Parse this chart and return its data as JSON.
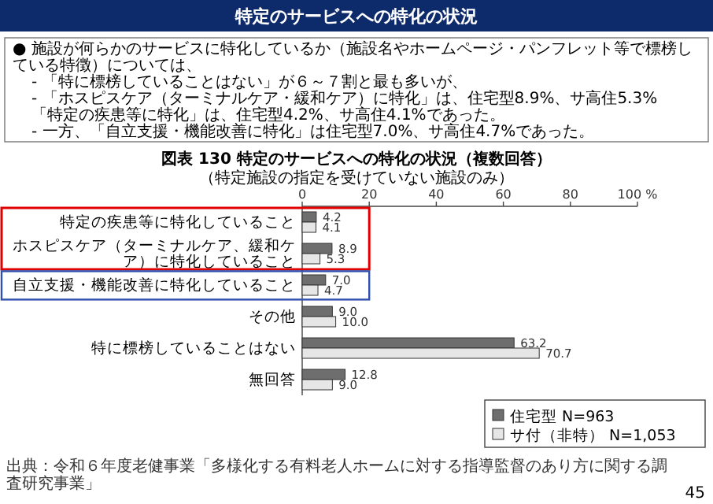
{
  "chart_data": {
    "type": "bar",
    "orientation": "horizontal",
    "title": "図表 130 特定のサービスへの特化の状況（複数回答）",
    "subtitle": "（特定施設の指定を受けていない施設のみ）",
    "categories": [
      "特定の疾患等に特化していること",
      "ホスピスケア（ターミナルケア、緩和ケア）に特化していること",
      "自立支援・機能改善に特化していること",
      "その他",
      "特に標榜していることはない",
      "無回答"
    ],
    "series": [
      {
        "name": "住宅型 N=963",
        "color": "#6e6e6e",
        "values": [
          4.2,
          8.9,
          7.0,
          9.0,
          63.2,
          12.8
        ],
        "value_labels": [
          "4.2",
          "8.9",
          "7.0",
          "9.0",
          "63.2",
          "12.8"
        ]
      },
      {
        "name": "サ付（非特） N=1,053",
        "color": "#e6e6e6",
        "values": [
          4.1,
          5.3,
          4.7,
          10.0,
          70.7,
          9.0
        ],
        "value_labels": [
          "4.1",
          "5.3",
          "4.7",
          "10.0",
          "70.7",
          "9.0"
        ]
      }
    ],
    "xlim": [
      0,
      100
    ],
    "xticks": [
      0,
      20,
      40,
      60,
      80,
      {
        "value": 100,
        "label": "100 %"
      }
    ],
    "legend": "bottom right",
    "annotations": [
      "特定のサービスへの特化の状況",
      "● 施設が何らかのサービスに特化しているか（施設名やホームページ・パンフレット等で標榜している特徴）については、",
      "- 「特に標榜していることはない」が６～７割と最も多いが、",
      "- 「ホスピスケア（ターミナルケア・緩和ケア）に特化」は、住宅型8.9%、サ高住5.3%",
      "「特定の疾患等に特化」は、住宅型4.2%、サ高住4.1%であった。",
      "- 一方、「自立支援・機能改善に特化」は住宅型7.0%、サ高住4.7%であった。",
      "出典：令和６年度老健事業「多様化する有料老人ホームに対する指導監督のあり方に関する調査研究事業」",
      "45"
    ]
  }
}
